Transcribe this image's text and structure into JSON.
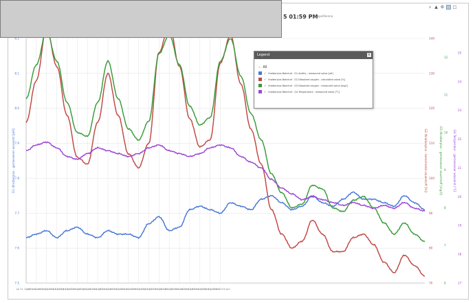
{
  "header": {
    "time_text": "5 01:59 PM",
    "sub_text": "Europe/Vienna"
  },
  "toolbar": {
    "icons": [
      "zoom-icon",
      "chart-type-icon",
      "settings-icon",
      "crosshair-icon",
      "expand-icon"
    ]
  },
  "legend": {
    "title": "Legend",
    "close_label": "×",
    "all_label": "All",
    "items": [
      {
        "label": "Kraiberplus Bahnhof - G1 Acidity - measured value [pH]",
        "color": "#4a78d8"
      },
      {
        "label": "Kraiberplus Bahnhof - G2 Dissolved oxygen - calculated value [%]",
        "color": "#c24a46"
      },
      {
        "label": "Kraiberplus Bahnhof - G3 Dissolved oxygen - measured value [mg/l]",
        "color": "#3c9c3c"
      },
      {
        "label": "Kraiberplus Bahnhof - G4 Temperature - measured value [°C]",
        "color": "#9c45d6"
      }
    ]
  },
  "chart_data": {
    "type": "line",
    "x_labels": [
      "Jul 21 12:00 am",
      "Jul 21 12:00 pm",
      "Jul 22 12:00 am",
      "Jul 22 12:00 pm",
      "Jul 23 12:00 am",
      "Jul 23 12:00 pm",
      "Jul 24 12:00 am",
      "Jul 24 12:00 pm",
      "Jul 25 12:00 am",
      "Jul 25 12:00 pm",
      "Jul 26 12:00 am",
      "Jul 26 12:00 pm",
      "Jul 27 12:00 am",
      "Jul 27 12:00 pm",
      "Jul 28 12:00 am",
      "Jul 28 12:00 pm",
      "Jul 29 12:00 am",
      "Jul 29 12:00 pm",
      "Jul 30 12:00 am",
      "Jul 30 12:00 pm"
    ],
    "x": [
      0,
      0.5,
      1,
      1.5,
      2,
      2.5,
      3,
      3.5,
      4,
      4.5,
      5,
      5.5,
      6,
      6.5,
      7,
      7.5,
      8,
      8.5,
      9,
      9.5
    ],
    "axes": [
      {
        "id": "ph",
        "side": "left",
        "label": "G1 (Kraiberplus - gemessener wasserst [pH])",
        "color": "#4a78d8",
        "ticks": [
          "7.5",
          "7.6",
          "7.7",
          "7.8",
          "7.9",
          "8.0",
          "8.1",
          "8.2"
        ],
        "ylim": [
          7.5,
          8.2
        ]
      },
      {
        "id": "pct",
        "side": "right",
        "label": "G2 (Kraiberplus - berechnete sauerstoff [%])",
        "color": "#c24a46",
        "ticks": [
          "70",
          "80",
          "90",
          "100",
          "110",
          "120",
          "130",
          "140"
        ],
        "ylim": [
          70,
          140
        ]
      },
      {
        "id": "mgl",
        "side": "right",
        "label": "G3 (Kraiberplus - gemessener sauerstoff [mg/l])",
        "color": "#3c9c3c",
        "ticks": [
          "6",
          "7",
          "8",
          "9",
          "10",
          "11",
          "12"
        ],
        "ylim": [
          6,
          12.5
        ]
      },
      {
        "id": "temp",
        "side": "right",
        "label": "G4 Temperatur - gemessener wasserst [°C]",
        "color": "#9c45d6",
        "ticks": [
          "17",
          "18",
          "19",
          "20",
          "21",
          "22",
          "23",
          "24",
          "25"
        ],
        "ylim": [
          17,
          25.5
        ]
      }
    ],
    "series": [
      {
        "name": "Kraiberplus Bahnhof - G1 Acidity - measured value [pH]",
        "axis": "ph",
        "color": "#4a78d8",
        "points": [
          [
            0,
            7.63
          ],
          [
            0.5,
            7.64
          ],
          [
            1,
            7.65
          ],
          [
            1.5,
            7.63
          ],
          [
            2,
            7.65
          ],
          [
            2.5,
            7.66
          ],
          [
            3,
            7.64
          ],
          [
            3.5,
            7.63
          ],
          [
            4,
            7.65
          ],
          [
            4.5,
            7.64
          ],
          [
            5,
            7.64
          ],
          [
            5.5,
            7.63
          ],
          [
            6,
            7.67
          ],
          [
            6.5,
            7.69
          ],
          [
            7,
            7.65
          ],
          [
            7.5,
            7.66
          ],
          [
            8,
            7.71
          ],
          [
            8.5,
            7.72
          ],
          [
            9,
            7.71
          ],
          [
            9.5,
            7.7
          ],
          [
            10,
            7.73
          ],
          [
            10.5,
            7.72
          ],
          [
            11,
            7.71
          ],
          [
            11.5,
            7.74
          ],
          [
            12,
            7.75
          ],
          [
            12.5,
            7.73
          ],
          [
            13,
            7.71
          ],
          [
            13.5,
            7.72
          ],
          [
            14,
            7.75
          ],
          [
            14.5,
            7.73
          ],
          [
            15,
            7.72
          ],
          [
            15.5,
            7.74
          ],
          [
            16,
            7.76
          ],
          [
            16.5,
            7.74
          ],
          [
            17,
            7.74
          ],
          [
            17.5,
            7.73
          ],
          [
            18,
            7.72
          ],
          [
            18.5,
            7.75
          ],
          [
            19,
            7.73
          ],
          [
            19.5,
            7.71
          ]
        ]
      },
      {
        "name": "Kraiberplus Bahnhof - G2 Dissolved oxygen - calculated value [%]",
        "axis": "pct",
        "color": "#c24a46",
        "points": [
          [
            0,
            116
          ],
          [
            0.5,
            128
          ],
          [
            1,
            143
          ],
          [
            1.5,
            132
          ],
          [
            2,
            118
          ],
          [
            2.5,
            106
          ],
          [
            3,
            104
          ],
          [
            3.5,
            116
          ],
          [
            4,
            130
          ],
          [
            4.5,
            118
          ],
          [
            5,
            107
          ],
          [
            5.5,
            103
          ],
          [
            6,
            110
          ],
          [
            6.5,
            136
          ],
          [
            7,
            144
          ],
          [
            7.5,
            132
          ],
          [
            8,
            117
          ],
          [
            8.5,
            109
          ],
          [
            9,
            111
          ],
          [
            9.5,
            133
          ],
          [
            10,
            141
          ],
          [
            10.5,
            127
          ],
          [
            11,
            114
          ],
          [
            11.5,
            104
          ],
          [
            12,
            91
          ],
          [
            12.5,
            84
          ],
          [
            13,
            80
          ],
          [
            13.5,
            82
          ],
          [
            14,
            88
          ],
          [
            14.5,
            84
          ],
          [
            15,
            79
          ],
          [
            15.5,
            79
          ],
          [
            16,
            83
          ],
          [
            16.5,
            84
          ],
          [
            17,
            81
          ],
          [
            17.5,
            76
          ],
          [
            18,
            73
          ],
          [
            18.5,
            78
          ],
          [
            19,
            75
          ],
          [
            19.5,
            72
          ]
        ]
      },
      {
        "name": "Kraiberplus Bahnhof - G3 Dissolved oxygen - measured value [mg/l]",
        "axis": "mgl",
        "color": "#3c9c3c",
        "points": [
          [
            0,
            10.9
          ],
          [
            0.5,
            11.8
          ],
          [
            1,
            12.7
          ],
          [
            1.5,
            11.9
          ],
          [
            2,
            10.8
          ],
          [
            2.5,
            10.0
          ],
          [
            3,
            9.9
          ],
          [
            3.5,
            10.8
          ],
          [
            4,
            11.9
          ],
          [
            4.5,
            10.9
          ],
          [
            5,
            10.1
          ],
          [
            5.5,
            9.8
          ],
          [
            6,
            10.3
          ],
          [
            6.5,
            12.1
          ],
          [
            7,
            12.6
          ],
          [
            7.5,
            11.8
          ],
          [
            8,
            10.7
          ],
          [
            8.5,
            10.2
          ],
          [
            9,
            10.4
          ],
          [
            9.5,
            11.9
          ],
          [
            10,
            12.5
          ],
          [
            10.5,
            11.5
          ],
          [
            11,
            10.5
          ],
          [
            11.5,
            9.8
          ],
          [
            12,
            8.9
          ],
          [
            12.5,
            8.4
          ],
          [
            13,
            8.0
          ],
          [
            13.5,
            8.1
          ],
          [
            14,
            8.6
          ],
          [
            14.5,
            8.5
          ],
          [
            15,
            8.0
          ],
          [
            15.5,
            7.9
          ],
          [
            16,
            8.2
          ],
          [
            16.5,
            8.3
          ],
          [
            17,
            8.0
          ],
          [
            17.5,
            7.6
          ],
          [
            18,
            7.3
          ],
          [
            18.5,
            7.6
          ],
          [
            19,
            7.3
          ],
          [
            19.5,
            7.1
          ]
        ]
      },
      {
        "name": "Kraiberplus Bahnhof - G4 Temperature - measured value [°C]",
        "axis": "temp",
        "color": "#9c45d6",
        "points": [
          [
            0,
            21.6
          ],
          [
            0.5,
            21.8
          ],
          [
            1,
            21.9
          ],
          [
            1.5,
            21.7
          ],
          [
            2,
            21.4
          ],
          [
            2.5,
            21.3
          ],
          [
            3,
            21.5
          ],
          [
            3.5,
            21.7
          ],
          [
            4,
            21.6
          ],
          [
            4.5,
            21.5
          ],
          [
            5,
            21.4
          ],
          [
            5.5,
            21.5
          ],
          [
            6,
            21.7
          ],
          [
            6.5,
            21.8
          ],
          [
            7,
            21.6
          ],
          [
            7.5,
            21.5
          ],
          [
            8,
            21.4
          ],
          [
            8.5,
            21.5
          ],
          [
            9,
            21.7
          ],
          [
            9.5,
            21.8
          ],
          [
            10,
            21.7
          ],
          [
            10.5,
            21.4
          ],
          [
            11,
            21.2
          ],
          [
            11.5,
            21.0
          ],
          [
            12,
            20.6
          ],
          [
            12.5,
            20.3
          ],
          [
            13,
            20.1
          ],
          [
            13.5,
            19.9
          ],
          [
            14,
            20.0
          ],
          [
            14.5,
            19.9
          ],
          [
            15,
            19.8
          ],
          [
            15.5,
            19.7
          ],
          [
            16,
            19.8
          ],
          [
            16.5,
            19.7
          ],
          [
            17,
            19.6
          ],
          [
            17.5,
            19.7
          ],
          [
            18,
            19.6
          ],
          [
            18.5,
            19.8
          ],
          [
            19,
            19.6
          ],
          [
            19.5,
            19.5
          ]
        ]
      }
    ],
    "grid": true,
    "legend_position": "top-right"
  }
}
